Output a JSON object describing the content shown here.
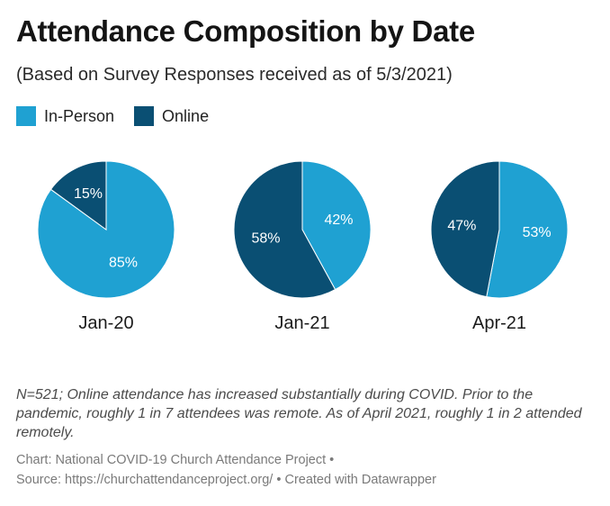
{
  "title": "Attendance Composition by Date",
  "subtitle": "(Based on Survey Responses received as of 5/3/2021)",
  "legend": [
    {
      "label": "In-Person",
      "color": "#1fa1d2"
    },
    {
      "label": "Online",
      "color": "#0a4f73"
    }
  ],
  "chart_data": {
    "type": "pie",
    "title": "Attendance Composition by Date",
    "subtitle": "(Based on Survey Responses received as of 5/3/2021)",
    "series_names": [
      "In-Person",
      "Online"
    ],
    "colors": {
      "In-Person": "#1fa1d2",
      "Online": "#0a4f73"
    },
    "pies": [
      {
        "category": "Jan-20",
        "values": {
          "In-Person": 85,
          "Online": 15
        },
        "labels": {
          "In-Person": "85%",
          "Online": "15%"
        }
      },
      {
        "category": "Jan-21",
        "values": {
          "In-Person": 42,
          "Online": 58
        },
        "labels": {
          "In-Person": "42%",
          "Online": "58%"
        }
      },
      {
        "category": "Apr-21",
        "values": {
          "In-Person": 53,
          "Online": 47
        },
        "labels": {
          "In-Person": "53%",
          "Online": "47%"
        }
      }
    ],
    "legend_position": "top-left"
  },
  "notes": "N=521; Online attendance has increased substantially during COVID. Prior to the pandemic, roughly 1 in 7 attendees was remote. As of April 2021, roughly 1 in 2 attended remotely.",
  "source": {
    "line1": "Chart: National COVID-19 Church Attendance Project •",
    "line2": "Source: https://churchattendanceproject.org/ • Created with Datawrapper"
  }
}
